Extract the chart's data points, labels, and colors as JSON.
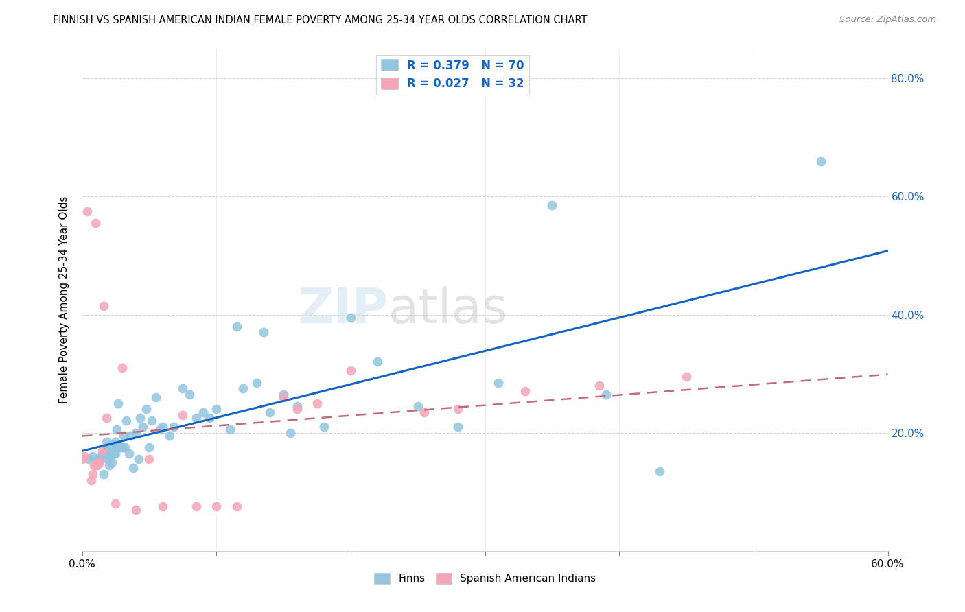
{
  "title": "FINNISH VS SPANISH AMERICAN INDIAN FEMALE POVERTY AMONG 25-34 YEAR OLDS CORRELATION CHART",
  "source": "Source: ZipAtlas.com",
  "ylabel": "Female Poverty Among 25-34 Year Olds",
  "xlim": [
    0.0,
    0.6
  ],
  "ylim": [
    0.0,
    0.85
  ],
  "legend_r_blue": "R = 0.379",
  "legend_n_blue": "N = 70",
  "legend_r_pink": "R = 0.027",
  "legend_n_pink": "N = 32",
  "blue_color": "#92c5de",
  "pink_color": "#f4a6b8",
  "line_blue": "#1565c0",
  "line_pink": "#c2697a",
  "finns_x": [
    0.005,
    0.008,
    0.01,
    0.012,
    0.012,
    0.013,
    0.015,
    0.015,
    0.016,
    0.017,
    0.018,
    0.018,
    0.019,
    0.02,
    0.02,
    0.021,
    0.021,
    0.022,
    0.022,
    0.023,
    0.024,
    0.025,
    0.025,
    0.026,
    0.027,
    0.028,
    0.03,
    0.031,
    0.032,
    0.033,
    0.035,
    0.036,
    0.038,
    0.04,
    0.042,
    0.043,
    0.045,
    0.048,
    0.05,
    0.052,
    0.055,
    0.058,
    0.06,
    0.065,
    0.068,
    0.075,
    0.08,
    0.085,
    0.09,
    0.095,
    0.1,
    0.11,
    0.115,
    0.12,
    0.13,
    0.135,
    0.14,
    0.15,
    0.155,
    0.16,
    0.18,
    0.2,
    0.22,
    0.25,
    0.28,
    0.31,
    0.35,
    0.39,
    0.43,
    0.55
  ],
  "finns_y": [
    0.155,
    0.16,
    0.145,
    0.15,
    0.155,
    0.155,
    0.16,
    0.165,
    0.13,
    0.17,
    0.175,
    0.185,
    0.155,
    0.145,
    0.16,
    0.165,
    0.175,
    0.15,
    0.18,
    0.175,
    0.165,
    0.165,
    0.185,
    0.205,
    0.25,
    0.175,
    0.175,
    0.195,
    0.175,
    0.22,
    0.165,
    0.195,
    0.14,
    0.2,
    0.155,
    0.225,
    0.21,
    0.24,
    0.175,
    0.22,
    0.26,
    0.205,
    0.21,
    0.195,
    0.21,
    0.275,
    0.265,
    0.225,
    0.235,
    0.225,
    0.24,
    0.205,
    0.38,
    0.275,
    0.285,
    0.37,
    0.235,
    0.265,
    0.2,
    0.245,
    0.21,
    0.395,
    0.32,
    0.245,
    0.21,
    0.285,
    0.585,
    0.265,
    0.135,
    0.66
  ],
  "spanish_x": [
    0.0,
    0.002,
    0.004,
    0.007,
    0.008,
    0.009,
    0.01,
    0.01,
    0.011,
    0.012,
    0.013,
    0.015,
    0.016,
    0.018,
    0.025,
    0.03,
    0.04,
    0.05,
    0.06,
    0.075,
    0.085,
    0.1,
    0.115,
    0.15,
    0.16,
    0.175,
    0.2,
    0.255,
    0.28,
    0.33,
    0.385,
    0.45
  ],
  "spanish_y": [
    0.155,
    0.16,
    0.575,
    0.12,
    0.13,
    0.145,
    0.145,
    0.555,
    0.145,
    0.15,
    0.15,
    0.17,
    0.415,
    0.225,
    0.08,
    0.31,
    0.07,
    0.155,
    0.075,
    0.23,
    0.075,
    0.075,
    0.075,
    0.26,
    0.24,
    0.25,
    0.305,
    0.235,
    0.24,
    0.27,
    0.28,
    0.295
  ]
}
